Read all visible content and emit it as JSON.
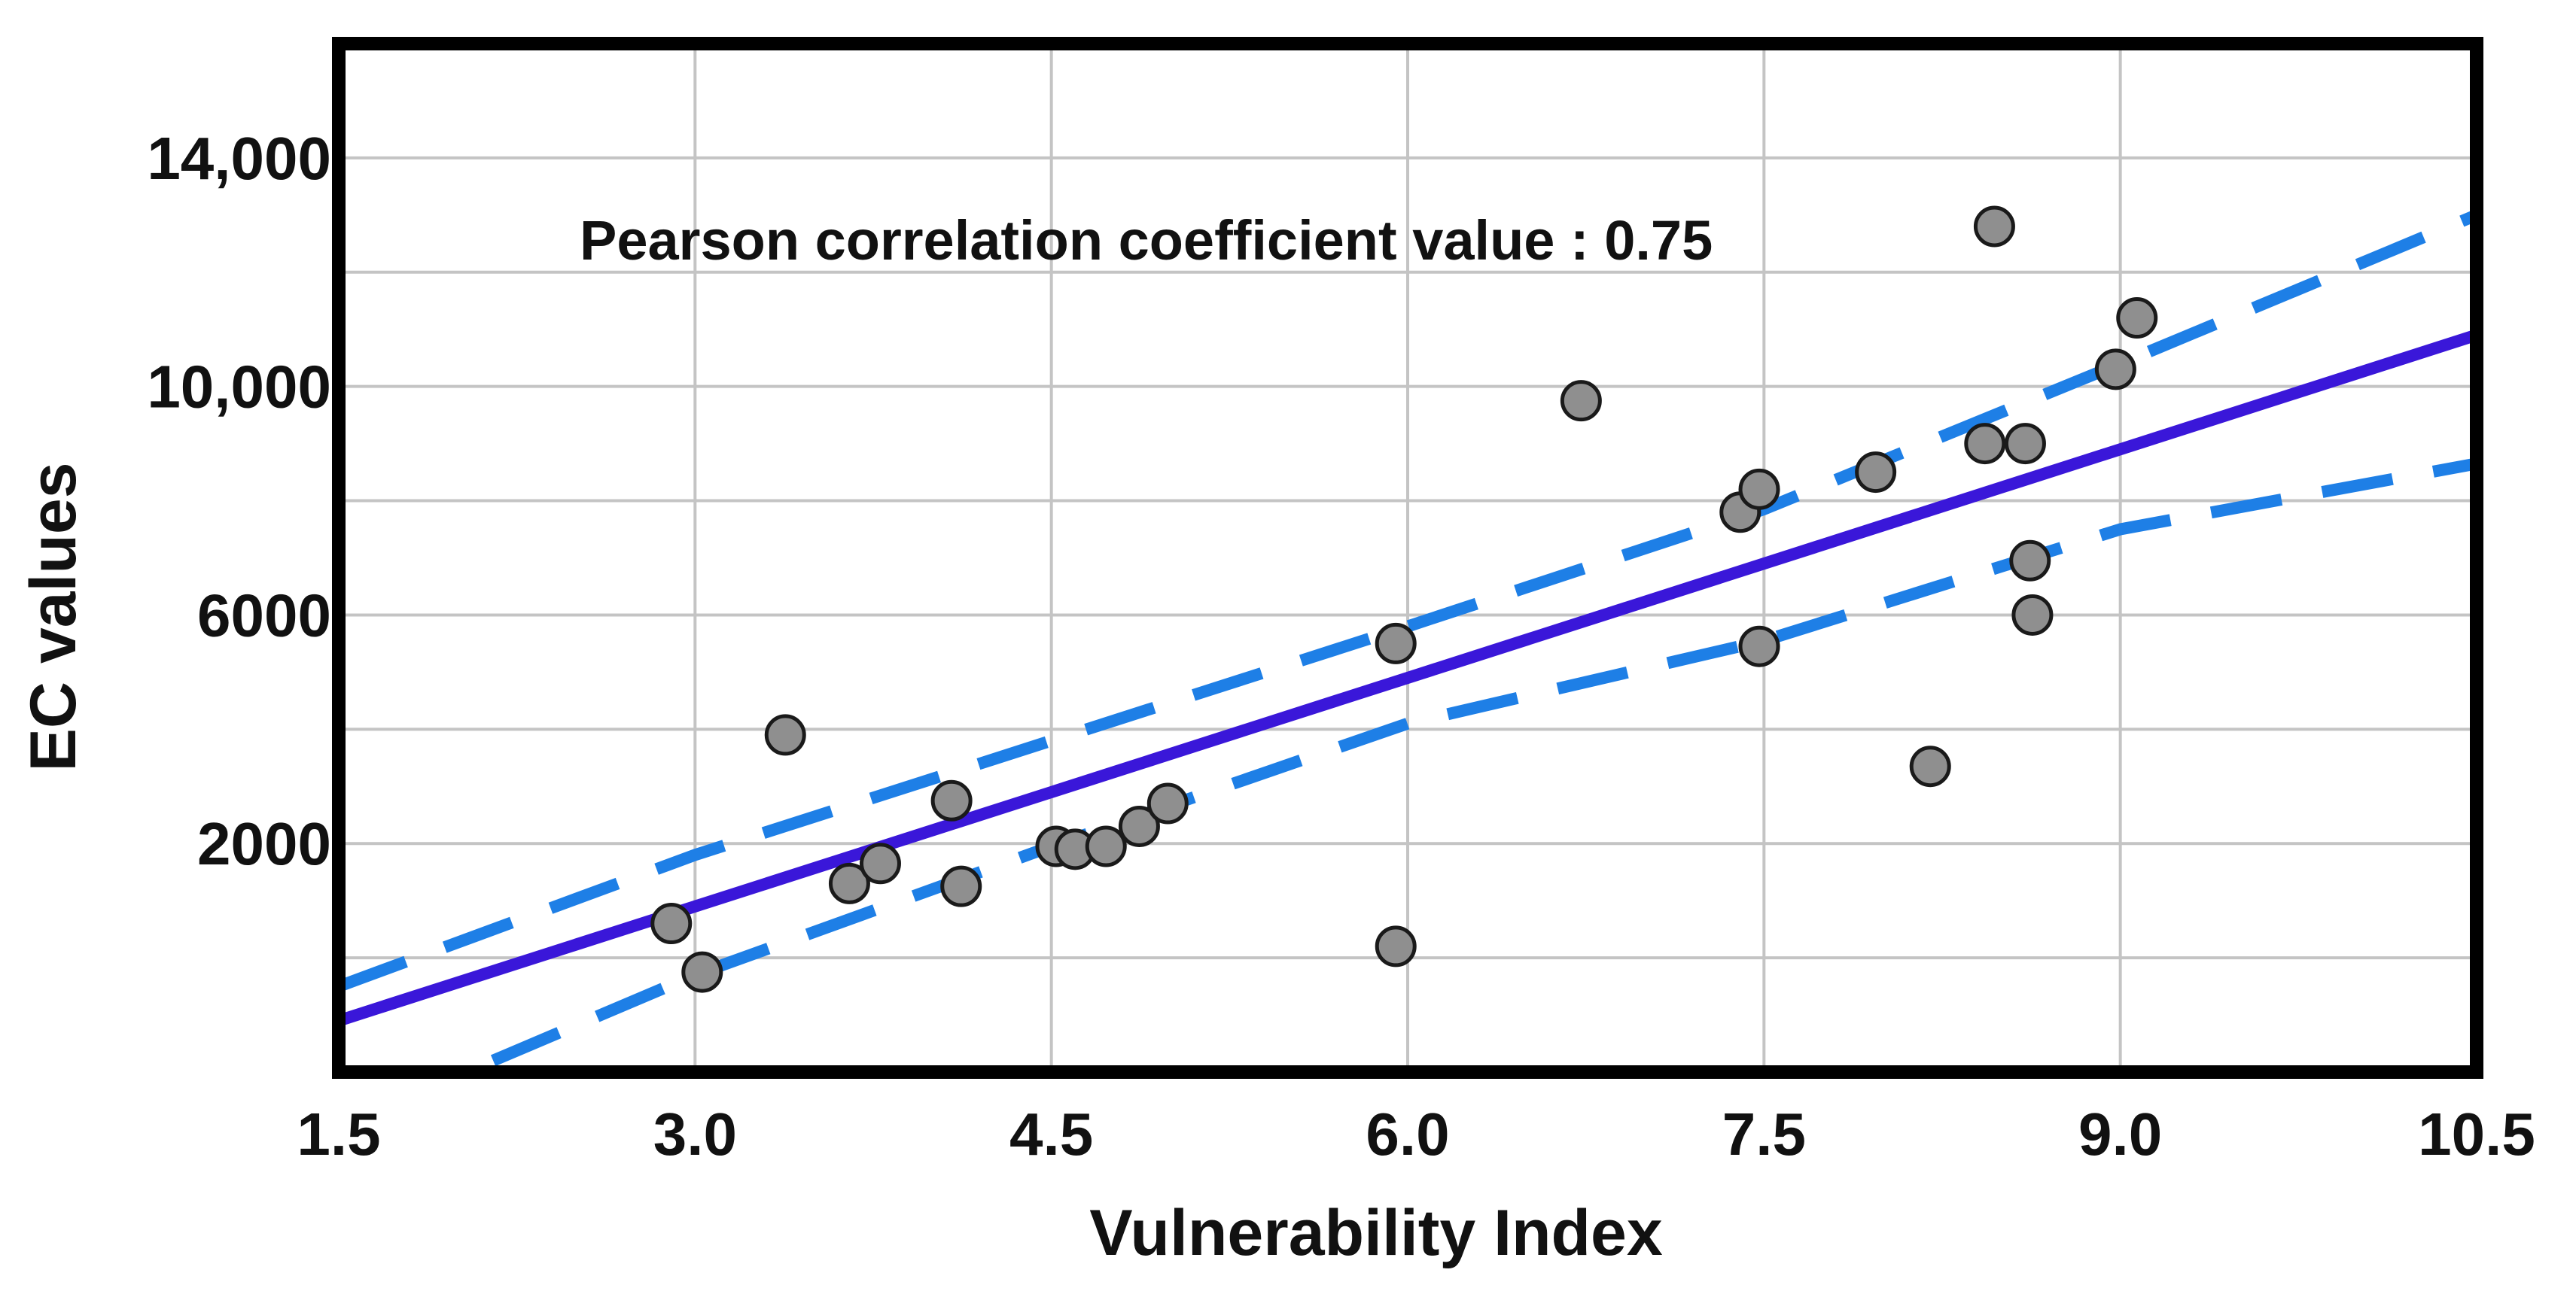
{
  "chart_data": {
    "type": "scatter",
    "title": "",
    "xlabel": "Vulnerability Index",
    "ylabel": "EC values",
    "xlim": [
      1.5,
      10.5
    ],
    "ylim": [
      -2000,
      16000
    ],
    "x_ticks": [
      1.5,
      3.0,
      4.5,
      6.0,
      7.5,
      9.0,
      10.5
    ],
    "x_tick_labels": [
      "1.5",
      "3.0",
      "4.5",
      "6.0",
      "7.5",
      "9.0",
      "10.5"
    ],
    "y_ticks": [
      2000,
      6000,
      10000,
      14000
    ],
    "y_tick_labels": [
      "2000",
      "6000",
      "10,000",
      "14,000"
    ],
    "grid": true,
    "annotation": "Pearson correlation coefficient value : 0.75",
    "points": [
      {
        "x": 2.9,
        "y": 600
      },
      {
        "x": 3.03,
        "y": -250
      },
      {
        "x": 3.38,
        "y": 3900
      },
      {
        "x": 3.65,
        "y": 1300
      },
      {
        "x": 3.78,
        "y": 1650
      },
      {
        "x": 4.08,
        "y": 2750
      },
      {
        "x": 4.12,
        "y": 1250
      },
      {
        "x": 4.52,
        "y": 1950
      },
      {
        "x": 4.6,
        "y": 1900
      },
      {
        "x": 4.73,
        "y": 1950
      },
      {
        "x": 4.87,
        "y": 2300
      },
      {
        "x": 4.99,
        "y": 2700
      },
      {
        "x": 5.95,
        "y": 5500
      },
      {
        "x": 5.95,
        "y": 200
      },
      {
        "x": 6.73,
        "y": 9750
      },
      {
        "x": 7.4,
        "y": 7800
      },
      {
        "x": 7.48,
        "y": 8200
      },
      {
        "x": 7.48,
        "y": 5450
      },
      {
        "x": 7.97,
        "y": 8500
      },
      {
        "x": 8.2,
        "y": 3350
      },
      {
        "x": 8.43,
        "y": 9000
      },
      {
        "x": 8.47,
        "y": 12800
      },
      {
        "x": 8.6,
        "y": 9000
      },
      {
        "x": 8.62,
        "y": 6950
      },
      {
        "x": 8.63,
        "y": 6000
      },
      {
        "x": 8.98,
        "y": 10300
      },
      {
        "x": 9.07,
        "y": 11200
      }
    ],
    "series": [
      {
        "name": "regression line",
        "style": "solid",
        "color": "#3a17d9",
        "x": [
          1.5,
          10.5
        ],
        "y": [
          -1100,
          10900
        ]
      },
      {
        "name": "upper confidence band",
        "style": "dashed",
        "color": "#1e7fe6",
        "x": [
          1.5,
          3.0,
          4.5,
          6.0,
          7.5,
          9.0,
          10.5
        ],
        "y": [
          -500,
          1800,
          3800,
          5800,
          7850,
          10400,
          13000
        ]
      },
      {
        "name": "lower confidence band",
        "style": "dashed",
        "color": "#1e7fe6",
        "x": [
          2.15,
          3.0,
          4.5,
          6.0,
          7.5,
          9.0,
          10.5
        ],
        "y": [
          -1800,
          -300,
          1950,
          4100,
          5550,
          7500,
          8650
        ]
      }
    ]
  }
}
